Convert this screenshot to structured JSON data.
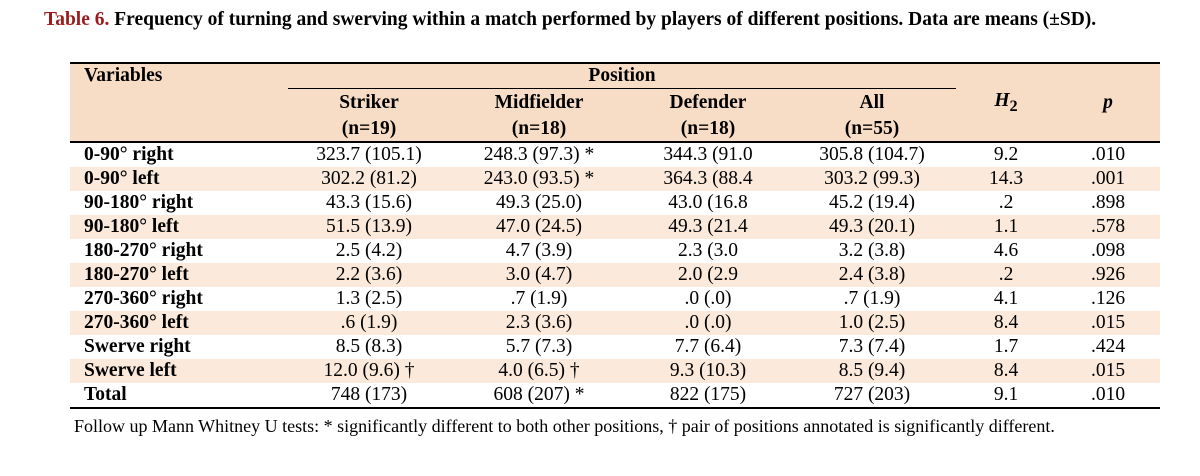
{
  "caption": {
    "label": "Table 6.",
    "text": "Frequency of turning and swerving within a match performed by players of different positions. Data are means (±SD)."
  },
  "table": {
    "variables_header": "Variables",
    "position_header": "Position",
    "columns": [
      {
        "name": "Striker",
        "n": "(n=19)"
      },
      {
        "name": "Midfielder",
        "n": "(n=18)"
      },
      {
        "name": "Defender",
        "n": "(n=18)"
      },
      {
        "name": "All",
        "n": "(n=55)"
      }
    ],
    "h_header": "H",
    "h_sub": "2",
    "p_header": "p",
    "rows": [
      {
        "variable": "0-90° right",
        "striker": "323.7 (105.1)",
        "midfielder": "248.3 (97.3) *",
        "defender": "344.3 (91.0",
        "all": "305.8 (104.7)",
        "h": "9.2",
        "p": ".010"
      },
      {
        "variable": "0-90° left",
        "striker": "302.2 (81.2)",
        "midfielder": "243.0 (93.5) *",
        "defender": "364.3 (88.4",
        "all": "303.2 (99.3)",
        "h": "14.3",
        "p": ".001"
      },
      {
        "variable": "90-180° right",
        "striker": "43.3 (15.6)",
        "midfielder": "49.3 (25.0)",
        "defender": "43.0 (16.8",
        "all": "45.2 (19.4)",
        "h": ".2",
        "p": ".898"
      },
      {
        "variable": "90-180° left",
        "striker": "51.5 (13.9)",
        "midfielder": "47.0 (24.5)",
        "defender": "49.3 (21.4",
        "all": "49.3 (20.1)",
        "h": "1.1",
        "p": ".578"
      },
      {
        "variable": "180-270° right",
        "striker": "2.5 (4.2)",
        "midfielder": "4.7 (3.9)",
        "defender": "2.3 (3.0",
        "all": "3.2 (3.8)",
        "h": "4.6",
        "p": ".098"
      },
      {
        "variable": "180-270° left",
        "striker": "2.2 (3.6)",
        "midfielder": "3.0 (4.7)",
        "defender": "2.0 (2.9",
        "all": "2.4 (3.8)",
        "h": ".2",
        "p": ".926"
      },
      {
        "variable": "270-360° right",
        "striker": "1.3 (2.5)",
        "midfielder": ".7 (1.9)",
        "defender": ".0 (.0)",
        "all": ".7 (1.9)",
        "h": "4.1",
        "p": ".126"
      },
      {
        "variable": "270-360° left",
        "striker": ".6 (1.9)",
        "midfielder": "2.3 (3.6)",
        "defender": ".0 (.0)",
        "all": "1.0 (2.5)",
        "h": "8.4",
        "p": ".015"
      },
      {
        "variable": "Swerve right",
        "striker": "8.5 (8.3)",
        "midfielder": "5.7 (7.3)",
        "defender": "7.7 (6.4)",
        "all": "7.3 (7.4)",
        "h": "1.7",
        "p": ".424"
      },
      {
        "variable": "Swerve left",
        "striker": "12.0 (9.6) †",
        "midfielder": "4.0 (6.5) †",
        "defender": "9.3 (10.3)",
        "all": "8.5 (9.4)",
        "h": "8.4",
        "p": ".015"
      },
      {
        "variable": "Total",
        "striker": "748 (173)",
        "midfielder": "608 (207) *",
        "defender": "822 (175)",
        "all": "727 (203)",
        "h": "9.1",
        "p": ".010"
      }
    ]
  },
  "footnote": "Follow up Mann Whitney U tests: * significantly different to both other positions, † pair of positions annotated is significantly different.",
  "colors": {
    "caption_label": "#9b1c1c",
    "header_fill": "#f8ddc6",
    "band_fill": "#fbeadb"
  }
}
